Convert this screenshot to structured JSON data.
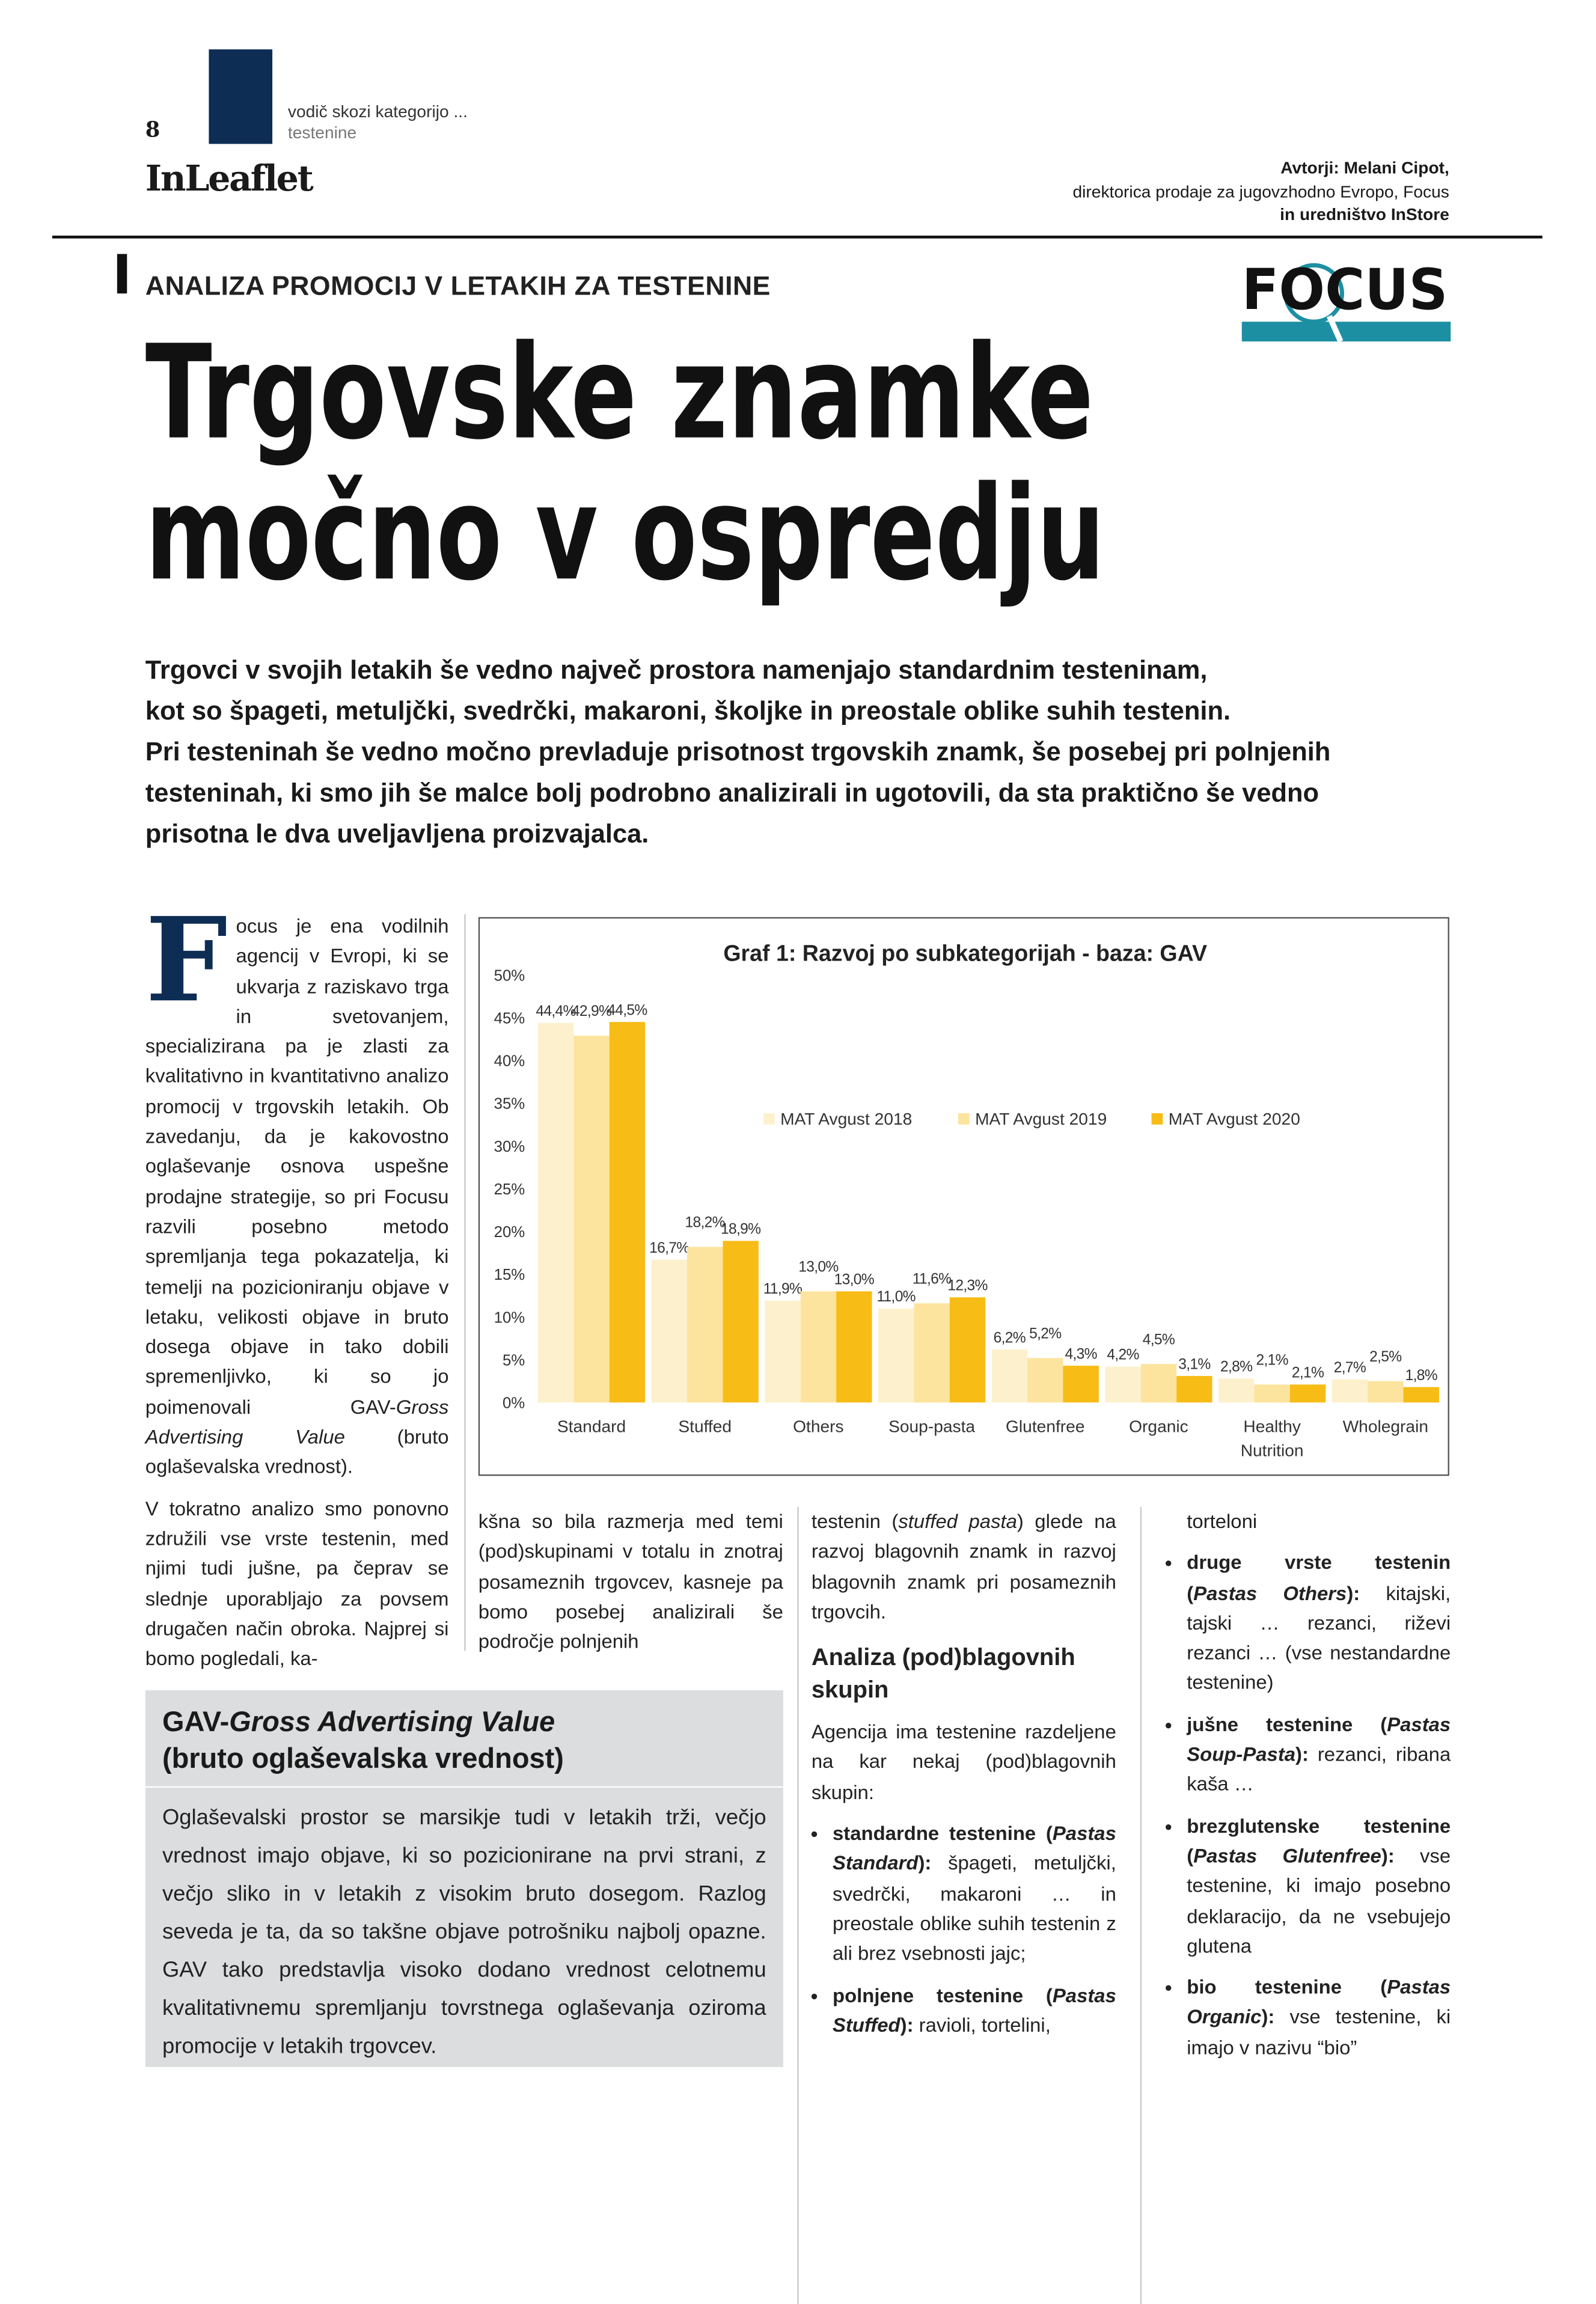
{
  "header": {
    "page_number": "8",
    "section": "vodič skozi kategorijo ...",
    "subsection": "testenine",
    "publication": "InLeaflet",
    "authors": "Avtorji: Melani Cipot,",
    "author_role": "direktorica prodaje za jugovzhodno Evropo, Focus",
    "editorial": "in uredništvo InStore",
    "logo": "FOCUS"
  },
  "article": {
    "kicker": "ANALIZA PROMOCIJ V LETAKIH ZA TESTENINE",
    "title": [
      "Trgovske znamke",
      "močno v ospredju"
    ],
    "lead": [
      "Trgovci v svojih letakih še vedno največ prostora namenjajo standardnim testeninam,",
      "kot so špageti, metuljčki, svedrčki, makaroni, školjke in preostale oblike suhih testenin.",
      "Pri testeninah še vedno močno prevladuje prisotnost trgovskih znamk, še posebej pri polnjenih",
      "testeninah, ki smo jih še malce bolj podrobno analizirali in ugotovili, da sta praktično še vedno",
      "prisotna le dva uveljavljena proizvajalca."
    ],
    "columns": [
      {
        "drop_cap": "F",
        "paragraphs": [
          [
            {
              "text": "ocus je ena vodilnih agencij v Evropi, ki se ukvarja z raziskavo trga in svetovanjem, specializirana pa je zlasti za kvalitativno in kvantitativno analizo promocij v trgovskih letakih. Ob zavedanju, da je kakovostno oglaševanje osnova uspešne prodajne strategije, so pri Focusu razvili posebno metodo spremljanja tega pokazatelja, ki temelji na pozicioniranju objave v letaku, velikosti objave in bruto dosega objave in tako dobili spremenljivko, ki so jo poimenovali GAV-"
            },
            {
              "text": "Gross Advertising Value",
              "italic": true
            },
            {
              "text": " (bruto oglaševalska vrednost)."
            }
          ],
          [
            {
              "text": "V tokratno analizo smo ponovno združili vse vrste testenin, med njimi tudi jušne, pa čeprav se slednje uporabljajo za povsem drugačen način obroka. Najprej si bomo pogledali, ka-"
            }
          ]
        ]
      },
      {
        "paragraphs": [
          [
            {
              "text": "kšna so bila razmerja med temi (pod)skupinami v totalu in znotraj posameznih trgovcev, kasneje pa bomo posebej analizirali še področje polnjenih"
            }
          ]
        ]
      },
      {
        "paragraphs": [
          [
            {
              "text": "testenin ("
            },
            {
              "text": "stuffed pasta",
              "italic": true
            },
            {
              "text": ") glede na razvoj blagovnih znamk in razvoj blagovnih znamk pri posameznih trgovcih."
            }
          ]
        ],
        "heading": "Analiza (pod)blagovnih skupin",
        "intro": "Agencija ima testenine razdeljene na kar nekaj (pod)blagovnih skupin:",
        "bullets": [
          [
            {
              "text": "standardne testenine (",
              "bold": true
            },
            {
              "text": "Pastas Standard",
              "bold": true,
              "italic": true
            },
            {
              "text": "):",
              "bold": true
            },
            {
              "text": " špageti, metuljčki, svedrčki, makaroni … in preostale oblike suhih testenin z ali brez vsebnosti jajc;"
            }
          ],
          [
            {
              "text": "polnjene testenine (",
              "bold": true
            },
            {
              "text": "Pastas Stuffed",
              "bold": true,
              "italic": true
            },
            {
              "text": "):",
              "bold": true
            },
            {
              "text": " ravioli, tortelini,"
            }
          ]
        ]
      },
      {
        "paragraphs": [
          [
            {
              "text": "torteloni"
            }
          ]
        ],
        "bullets": [
          [
            {
              "text": "druge vrste testenin (",
              "bold": true
            },
            {
              "text": "Pastas Others",
              "bold": true,
              "italic": true
            },
            {
              "text": "):",
              "bold": true
            },
            {
              "text": " kitajski, tajski … rezanci, riževi rezanci … (vse nestandardne testenine)"
            }
          ],
          [
            {
              "text": "jušne testenine (",
              "bold": true
            },
            {
              "text": "Pastas Soup-Pasta",
              "bold": true,
              "italic": true
            },
            {
              "text": "):",
              "bold": true
            },
            {
              "text": " rezanci, ribana kaša …"
            }
          ],
          [
            {
              "text": "brezglutenske testenine (",
              "bold": true
            },
            {
              "text": "Pastas Glutenfree",
              "bold": true,
              "italic": true
            },
            {
              "text": "):",
              "bold": true
            },
            {
              "text": " vse testenine, ki imajo posebno deklaracijo, da ne vsebujejo glutena"
            }
          ],
          [
            {
              "text": "bio testenine (",
              "bold": true
            },
            {
              "text": "Pastas Organic",
              "bold": true,
              "italic": true
            },
            {
              "text": "):",
              "bold": true
            },
            {
              "text": " vse testenine, ki imajo v nazivu “bio”"
            }
          ]
        ]
      }
    ]
  },
  "box": {
    "title": [
      {
        "text": "GAV-"
      },
      {
        "text": "Gross Advertising Value",
        "italic": true
      }
    ],
    "subtitle": "(bruto oglaševalska vrednost)",
    "text": "Oglaševalski prostor se marsikje tudi v letakih trži, večjo vrednost imajo objave, ki so pozicionirane na prvi strani, z večjo sliko in v letakih z visokim bruto dosegom. Razlog seveda je ta, da so takšne objave potrošniku najbolj opazne. GAV tako predstavlja visoko dodano vrednost celotnemu kvalitativnemu spremljanju tovrstnega oglaševanja oziroma promocije v letakih trgovcev."
  },
  "chart_data": {
    "type": "bar",
    "title": "Graf 1: Razvoj po subkategorijah - baza: GAV",
    "categories": [
      "Standard",
      "Stuffed",
      "Others",
      "Soup-pasta",
      "Glutenfree",
      "Organic",
      "Healthy Nutrition",
      "Wholegrain"
    ],
    "series": [
      {
        "name": "MAT Avgust 2018",
        "color": "#fdf1cd",
        "values": [
          44.4,
          16.7,
          11.9,
          11.0,
          6.2,
          4.2,
          2.8,
          2.7
        ],
        "value_labels": [
          "44,4%",
          "16,7%",
          "11,9%",
          "11,0%",
          "6,2%",
          "4,2%",
          "2,8%",
          "2,7%"
        ]
      },
      {
        "name": "MAT Avgust 2019",
        "color": "#fde49e",
        "values": [
          42.9,
          18.2,
          13.0,
          11.6,
          5.2,
          4.5,
          2.1,
          2.5
        ],
        "value_labels": [
          "42,9%",
          "18,2%",
          "13,0%",
          "11,6%",
          "5,2%",
          "4,5%",
          "2,1%",
          "2,5%"
        ]
      },
      {
        "name": "MAT Avgust 2020",
        "color": "#f8bc16",
        "values": [
          44.5,
          18.9,
          13.0,
          12.3,
          4.3,
          3.1,
          2.1,
          1.8
        ],
        "value_labels": [
          "44,5%",
          "18,9%",
          "13,0%",
          "12,3%",
          "4,3%",
          "3,1%",
          "2,1%",
          "1,8%"
        ]
      }
    ],
    "ylim": [
      0,
      50
    ],
    "yticks": [
      {
        "value": 0,
        "label": "0%"
      },
      {
        "value": 5,
        "label": "5%"
      },
      {
        "value": 10,
        "label": "10%"
      },
      {
        "value": 15,
        "label": "15%"
      },
      {
        "value": 20,
        "label": "20%"
      },
      {
        "value": 25,
        "label": "25%"
      },
      {
        "value": 30,
        "label": "30%"
      },
      {
        "value": 35,
        "label": "35%"
      },
      {
        "value": 40,
        "label": "40%"
      },
      {
        "value": 45,
        "label": "45%"
      },
      {
        "value": 50,
        "label": "50%"
      }
    ],
    "grid": false
  }
}
